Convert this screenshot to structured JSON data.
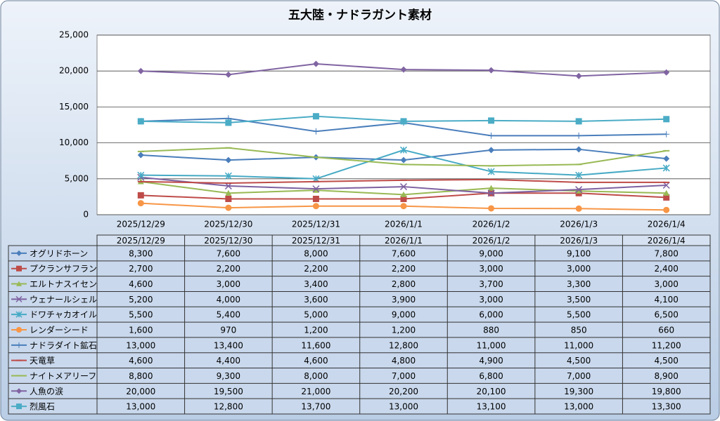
{
  "chart_data": {
    "type": "line",
    "title": "五大陸・ナドラガント素材",
    "categories": [
      "2025/12/29",
      "2025/12/30",
      "2025/12/31",
      "2026/1/1",
      "2026/1/2",
      "2026/1/3",
      "2026/1/4"
    ],
    "ylim": [
      0,
      25000
    ],
    "yticks": [
      0,
      {
        "value": 5000,
        "label": "5,000"
      },
      {
        "value": 10000,
        "label": "10,000"
      },
      {
        "value": 15000,
        "label": "15,000"
      },
      {
        "value": 20000,
        "label": "20,000"
      },
      {
        "value": 25000,
        "label": "25,000"
      }
    ],
    "grid": true,
    "series": [
      {
        "name": "オグリドホーン",
        "color": "#4a7ebb",
        "marker": "diamond",
        "values": [
          8300,
          7600,
          8000,
          7600,
          9000,
          9100,
          7800
        ],
        "value_labels": [
          "8,300",
          "7,600",
          "8,000",
          "7,600",
          "9,000",
          "9,100",
          "7,800"
        ]
      },
      {
        "name": "プクランサフラン",
        "color": "#be4b48",
        "marker": "square",
        "values": [
          2700,
          2200,
          2200,
          2200,
          3000,
          3000,
          2400
        ],
        "value_labels": [
          "2,700",
          "2,200",
          "2,200",
          "2,200",
          "3,000",
          "3,000",
          "2,400"
        ]
      },
      {
        "name": "エルトナスイセン",
        "color": "#98b954",
        "marker": "triangle",
        "values": [
          4600,
          3000,
          3400,
          2800,
          3700,
          3300,
          3000
        ],
        "value_labels": [
          "4,600",
          "3,000",
          "3,400",
          "2,800",
          "3,700",
          "3,300",
          "3,000"
        ]
      },
      {
        "name": "ウェナールシェル",
        "color": "#7d60a0",
        "marker": "x",
        "values": [
          5200,
          4000,
          3600,
          3900,
          3000,
          3500,
          4100
        ],
        "value_labels": [
          "5,200",
          "4,000",
          "3,600",
          "3,900",
          "3,000",
          "3,500",
          "4,100"
        ]
      },
      {
        "name": "ドワチャカオイル",
        "color": "#46aac5",
        "marker": "star",
        "values": [
          5500,
          5400,
          5000,
          9000,
          6000,
          5500,
          6500
        ],
        "value_labels": [
          "5,500",
          "5,400",
          "5,000",
          "9,000",
          "6,000",
          "5,500",
          "6,500"
        ]
      },
      {
        "name": "レンダーシード",
        "color": "#f79646",
        "marker": "circle",
        "values": [
          1600,
          970,
          1200,
          1200,
          880,
          850,
          660
        ],
        "value_labels": [
          "1,600",
          "970",
          "1,200",
          "1,200",
          "880",
          "850",
          "660"
        ]
      },
      {
        "name": "ナドラダイト鉱石",
        "color": "#4a7ebb",
        "marker": "plus",
        "values": [
          13000,
          13400,
          11600,
          12800,
          11000,
          11000,
          11200
        ],
        "value_labels": [
          "13,000",
          "13,400",
          "11,600",
          "12,800",
          "11,000",
          "11,000",
          "11,200"
        ]
      },
      {
        "name": "天竜草",
        "color": "#be4b48",
        "marker": "dash",
        "values": [
          4600,
          4400,
          4600,
          4800,
          4900,
          4500,
          4500
        ],
        "value_labels": [
          "4,600",
          "4,400",
          "4,600",
          "4,800",
          "4,900",
          "4,500",
          "4,500"
        ]
      },
      {
        "name": "ナイトメアリーフ",
        "color": "#98b954",
        "marker": "dash",
        "values": [
          8800,
          9300,
          8000,
          7000,
          6800,
          7000,
          8900
        ],
        "value_labels": [
          "8,800",
          "9,300",
          "8,000",
          "7,000",
          "6,800",
          "7,000",
          "8,900"
        ]
      },
      {
        "name": "人魚の涙",
        "color": "#8064a2",
        "marker": "diamond",
        "values": [
          20000,
          19500,
          21000,
          20200,
          20100,
          19300,
          19800
        ],
        "value_labels": [
          "20,000",
          "19,500",
          "21,000",
          "20,200",
          "20,100",
          "19,300",
          "19,800"
        ]
      },
      {
        "name": "烈風石",
        "color": "#4bacc6",
        "marker": "square",
        "values": [
          13000,
          12800,
          13700,
          13000,
          13100,
          13000,
          13300
        ],
        "value_labels": [
          "13,000",
          "12,800",
          "13,700",
          "13,000",
          "13,100",
          "13,000",
          "13,300"
        ]
      }
    ]
  }
}
